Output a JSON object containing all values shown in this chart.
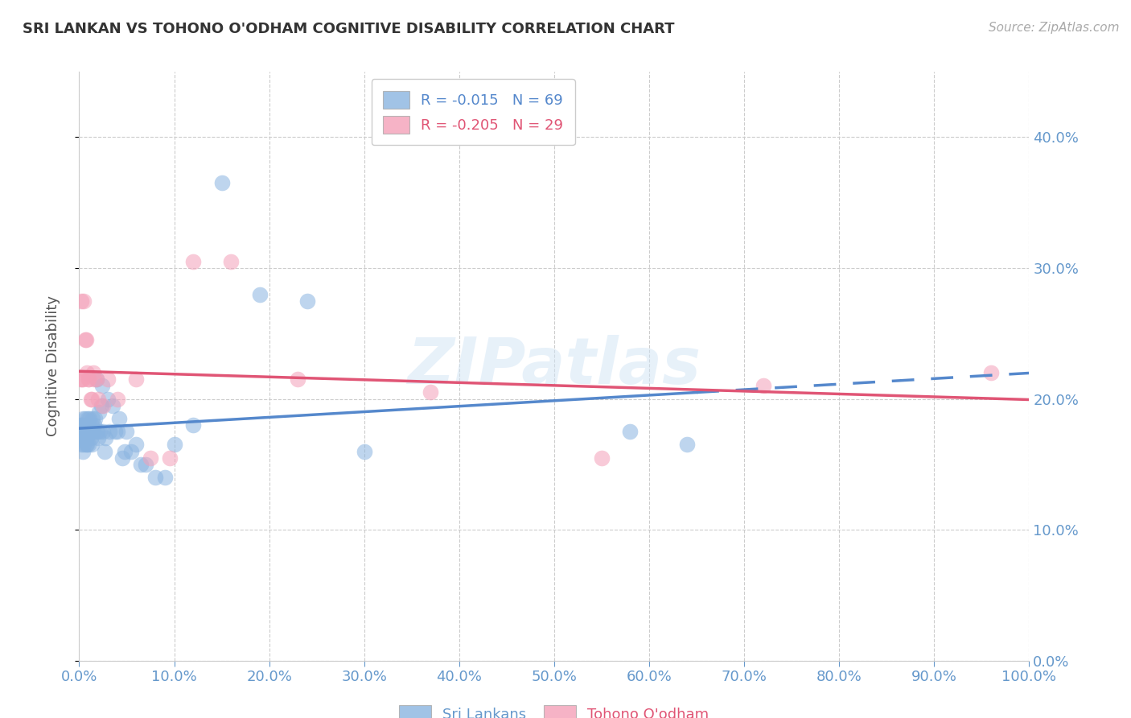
{
  "title": "SRI LANKAN VS TOHONO O'ODHAM COGNITIVE DISABILITY CORRELATION CHART",
  "source": "Source: ZipAtlas.com",
  "ylabel": "Cognitive Disability",
  "legend_1_label": "Sri Lankans",
  "legend_2_label": "Tohono O'odham",
  "r1": -0.015,
  "n1": 69,
  "r2": -0.205,
  "n2": 29,
  "blue_color": "#8ab4e0",
  "pink_color": "#f4a0b8",
  "blue_line_color": "#5588cc",
  "pink_line_color": "#e05575",
  "axis_label_color": "#6699cc",
  "title_color": "#333333",
  "grid_color": "#cccccc",
  "watermark": "ZIPatlas",
  "blue_scatter_x": [
    0.001,
    0.002,
    0.002,
    0.003,
    0.003,
    0.004,
    0.004,
    0.004,
    0.005,
    0.005,
    0.005,
    0.006,
    0.006,
    0.007,
    0.007,
    0.007,
    0.008,
    0.008,
    0.008,
    0.009,
    0.009,
    0.01,
    0.01,
    0.01,
    0.011,
    0.011,
    0.012,
    0.012,
    0.013,
    0.013,
    0.014,
    0.014,
    0.015,
    0.016,
    0.016,
    0.017,
    0.018,
    0.019,
    0.02,
    0.021,
    0.022,
    0.023,
    0.024,
    0.025,
    0.027,
    0.028,
    0.03,
    0.032,
    0.035,
    0.038,
    0.04,
    0.042,
    0.045,
    0.048,
    0.05,
    0.055,
    0.06,
    0.065,
    0.07,
    0.08,
    0.09,
    0.1,
    0.12,
    0.15,
    0.19,
    0.24,
    0.3,
    0.58,
    0.64
  ],
  "blue_scatter_y": [
    0.18,
    0.175,
    0.165,
    0.18,
    0.17,
    0.175,
    0.16,
    0.185,
    0.175,
    0.165,
    0.18,
    0.17,
    0.185,
    0.175,
    0.165,
    0.175,
    0.17,
    0.18,
    0.165,
    0.175,
    0.185,
    0.175,
    0.165,
    0.18,
    0.175,
    0.185,
    0.17,
    0.175,
    0.165,
    0.18,
    0.175,
    0.185,
    0.175,
    0.175,
    0.18,
    0.185,
    0.215,
    0.175,
    0.17,
    0.19,
    0.175,
    0.195,
    0.21,
    0.175,
    0.16,
    0.17,
    0.2,
    0.175,
    0.195,
    0.175,
    0.175,
    0.185,
    0.155,
    0.16,
    0.175,
    0.16,
    0.165,
    0.15,
    0.15,
    0.14,
    0.14,
    0.165,
    0.18,
    0.365,
    0.28,
    0.275,
    0.16,
    0.175,
    0.165
  ],
  "pink_scatter_x": [
    0.001,
    0.002,
    0.003,
    0.004,
    0.005,
    0.006,
    0.007,
    0.008,
    0.01,
    0.01,
    0.012,
    0.013,
    0.015,
    0.016,
    0.018,
    0.02,
    0.025,
    0.03,
    0.04,
    0.06,
    0.075,
    0.095,
    0.12,
    0.16,
    0.23,
    0.37,
    0.55,
    0.72,
    0.96
  ],
  "pink_scatter_y": [
    0.215,
    0.275,
    0.215,
    0.215,
    0.275,
    0.245,
    0.245,
    0.22,
    0.215,
    0.215,
    0.2,
    0.2,
    0.22,
    0.215,
    0.215,
    0.2,
    0.195,
    0.215,
    0.2,
    0.215,
    0.155,
    0.155,
    0.305,
    0.305,
    0.215,
    0.205,
    0.155,
    0.21,
    0.22
  ]
}
